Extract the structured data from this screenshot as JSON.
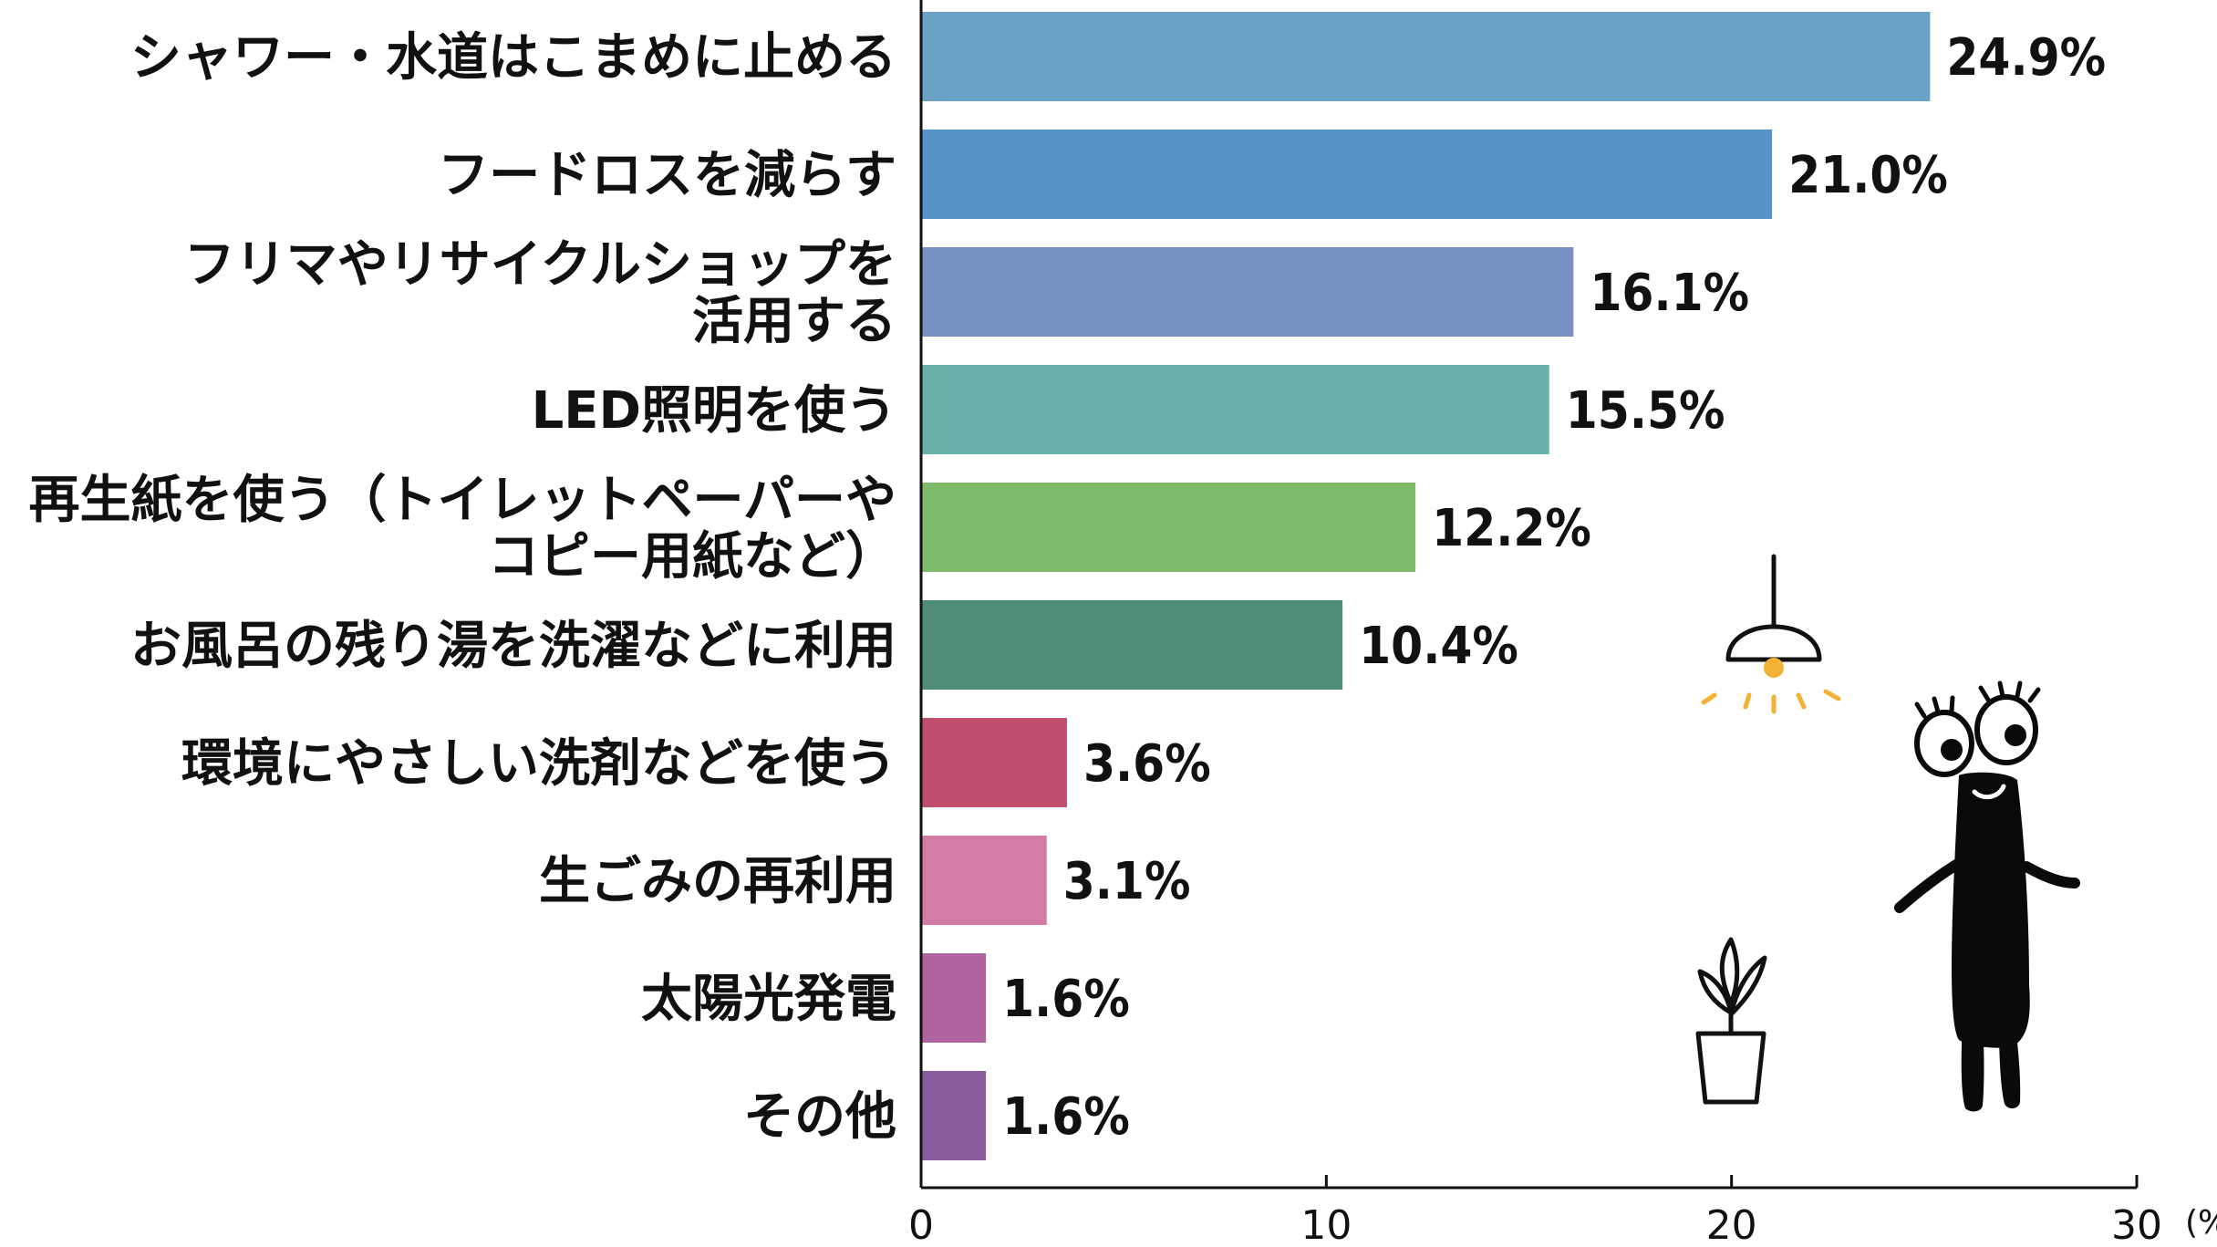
{
  "chart_data": {
    "type": "bar",
    "orientation": "horizontal",
    "categories": [
      [
        "シャワー・水道はこまめに止める"
      ],
      [
        "フードロスを減らす"
      ],
      [
        "フリマやリサイクルショップを",
        "活用する"
      ],
      [
        "LED照明を使う"
      ],
      [
        "再生紙を使う（トイレットペーパーや",
        "コピー用紙など）"
      ],
      [
        "お風呂の残り湯を洗濯などに利用"
      ],
      [
        "環境にやさしい洗剤などを使う"
      ],
      [
        "生ごみの再利用"
      ],
      [
        "太陽光発電"
      ],
      [
        "その他"
      ]
    ],
    "values": [
      24.9,
      21.0,
      16.1,
      15.5,
      12.2,
      10.4,
      3.6,
      3.1,
      1.6,
      1.6
    ],
    "value_labels": [
      "24.9%",
      "21.0%",
      "16.1%",
      "15.5%",
      "12.2%",
      "10.4%",
      "3.6%",
      "3.1%",
      "1.6%",
      "1.6%"
    ],
    "colors": [
      "#6aa2c6",
      "#5793c9",
      "#7891c4",
      "#6aafa8",
      "#7dba6a",
      "#4e8b79",
      "#c04c6e",
      "#d37ca6",
      "#b0649f",
      "#8a5c9e"
    ],
    "xlim": [
      0,
      30
    ],
    "xticks": [
      0,
      10,
      20,
      30
    ],
    "x_unit": "(%)",
    "grid": false
  },
  "decorations": {
    "icons": [
      "ceiling-lamp-icon",
      "potted-plant-icon",
      "character-illustration-icon"
    ],
    "accent": "#f2b233"
  }
}
